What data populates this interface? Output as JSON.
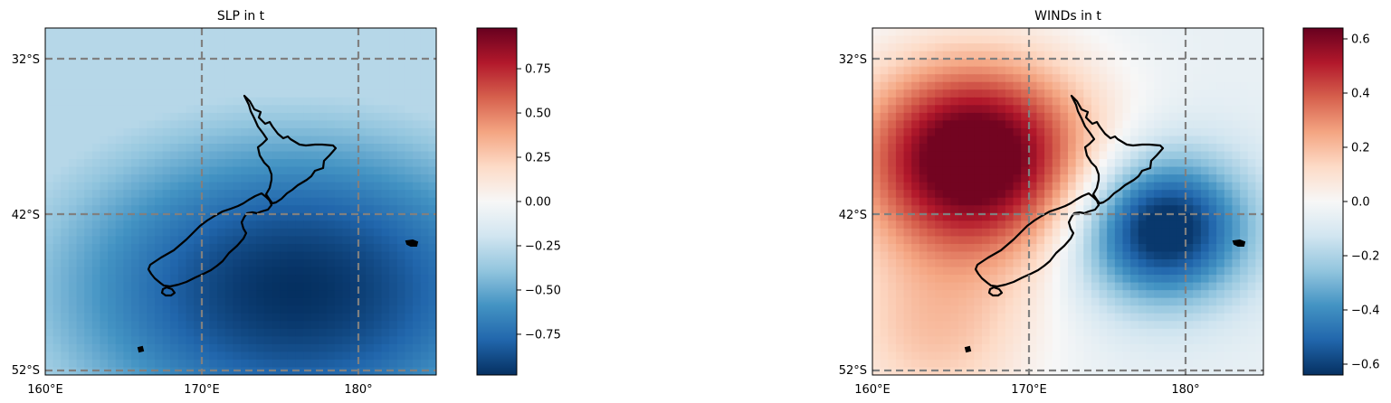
{
  "chart_data": [
    {
      "type": "heatmap",
      "title": "SLP in t",
      "projection": "lon-lat map",
      "lon_range": [
        160,
        185
      ],
      "lat_range": [
        -52.5,
        -30
      ],
      "x_ticks": [
        "160°E",
        "170°E",
        "180°"
      ],
      "y_ticks": [
        "32°S",
        "42°S",
        "52°S"
      ],
      "gridlines": {
        "style": "dashed",
        "color": "#808080",
        "lons": [
          170,
          180
        ],
        "lats": [
          -32,
          -42,
          -52
        ]
      },
      "colormap": "RdBu_r",
      "vmin": -0.98,
      "vmax": 0.98,
      "colorbar_ticks": [
        "0.75",
        "0.50",
        "0.25",
        "0.00",
        "−0.25",
        "−0.50",
        "−0.75"
      ],
      "colorbar_tick_values": [
        0.75,
        0.5,
        0.25,
        0.0,
        -0.25,
        -0.5,
        -0.75
      ],
      "field_description": "strong negative anomaly centered near 176°E 47°S (min ≈ -0.98), weakening to ≈ -0.35 toward the north-west corner"
    },
    {
      "type": "heatmap",
      "title": "WINDs in t",
      "projection": "lon-lat map",
      "lon_range": [
        160,
        185
      ],
      "lat_range": [
        -52.5,
        -30
      ],
      "x_ticks": [
        "160°E",
        "170°E",
        "180°"
      ],
      "y_ticks": [
        "32°S",
        "42°S",
        "52°S"
      ],
      "gridlines": {
        "style": "dashed",
        "color": "#808080",
        "lons": [
          170,
          180
        ],
        "lats": [
          -32,
          -42,
          -52
        ]
      },
      "colormap": "RdBu_r",
      "vmin": -0.64,
      "vmax": 0.64,
      "colorbar_ticks": [
        "0.6",
        "0.4",
        "0.2",
        "0.0",
        "−0.2",
        "−0.4",
        "−0.6"
      ],
      "colorbar_tick_values": [
        0.6,
        0.4,
        0.2,
        0.0,
        -0.2,
        -0.4,
        -0.6
      ],
      "field_description": "positive maximum (≈0.62) west of New Zealand near 167°E 38°S, negative minimum (≈-0.55) east near 178°E 43°S"
    }
  ],
  "colors": {
    "gridline": "#808080",
    "coastline": "#000000",
    "colormap_stops": [
      "#053061",
      "#2166ac",
      "#4393c3",
      "#92c5de",
      "#d1e5f0",
      "#f7f7f7",
      "#fddbc7",
      "#f4a582",
      "#d6604d",
      "#b2182b",
      "#67001f"
    ]
  }
}
